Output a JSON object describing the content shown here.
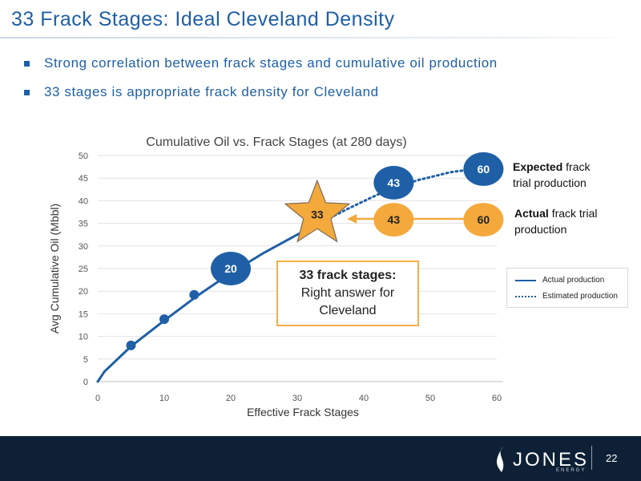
{
  "slide": {
    "title": "33 Frack Stages: Ideal Cleveland Density",
    "bullets": [
      "Strong correlation between frack stages and cumulative oil production",
      "33 stages is appropriate frack density for Cleveland"
    ],
    "page_number": "22",
    "logo": {
      "name": "JONES",
      "sub": "ENERGY"
    }
  },
  "colors": {
    "accent": "#1f5fa6",
    "actual_line": "#1f5fa6",
    "orange": "#f4a93c",
    "footer": "#0d2035"
  },
  "callout": {
    "bold": "33 frack stages:",
    "line1": "Right answer for",
    "line2": "Cleveland"
  },
  "notes": {
    "expected_bold": "Expected",
    "expected_rest1": "frack",
    "expected_rest2": "trial production",
    "actual_bold": "Actual",
    "actual_rest1": "frack trial",
    "actual_rest2": "production"
  },
  "chart_data": {
    "type": "line",
    "title": "Cumulative Oil vs. Frack Stages (at 280 days)",
    "xlabel": "Effective Frack Stages",
    "ylabel": "Avg Cumulative Oil (Mbbl)",
    "xlim": [
      0,
      60
    ],
    "ylim": [
      0,
      50
    ],
    "xticks": [
      0,
      10,
      20,
      30,
      40,
      50,
      60
    ],
    "yticks": [
      0,
      5,
      10,
      15,
      20,
      25,
      30,
      35,
      40,
      45,
      50
    ],
    "grid": true,
    "legend_position": "right",
    "series": [
      {
        "name": "Actual production",
        "style": "solid",
        "x": [
          0,
          1,
          5,
          10,
          15,
          20,
          25,
          30,
          33
        ],
        "y": [
          0,
          2.2,
          7.8,
          13.5,
          19,
          24,
          28.5,
          32.5,
          34.8
        ]
      },
      {
        "name": "Estimated production",
        "style": "dotted",
        "x": [
          33,
          38,
          43,
          48,
          53,
          58
        ],
        "y": [
          34.8,
          38.5,
          42,
          44.5,
          46.3,
          47.3
        ]
      }
    ],
    "markers": [
      {
        "x": 5,
        "y": 8
      },
      {
        "x": 10,
        "y": 13.8
      },
      {
        "x": 14.5,
        "y": 19.2
      }
    ],
    "labeled_points": [
      {
        "label": "20",
        "x": 20,
        "y": 25,
        "color": "blue",
        "shape": "circle"
      },
      {
        "label": "33",
        "x": 33,
        "y": 37,
        "color": "orange",
        "shape": "star"
      },
      {
        "label": "43",
        "x": 44.5,
        "y": 44,
        "color": "blue",
        "shape": "circle"
      },
      {
        "label": "60",
        "x": 58,
        "y": 47,
        "color": "blue",
        "shape": "circle"
      },
      {
        "label": "43",
        "x": 44.5,
        "y": 35.8,
        "color": "orange",
        "shape": "circle"
      },
      {
        "label": "60",
        "x": 58,
        "y": 35.8,
        "color": "orange",
        "shape": "circle"
      }
    ],
    "arrow": {
      "from_x": 58,
      "to_x": 37.5,
      "y": 36,
      "color": "orange"
    }
  }
}
